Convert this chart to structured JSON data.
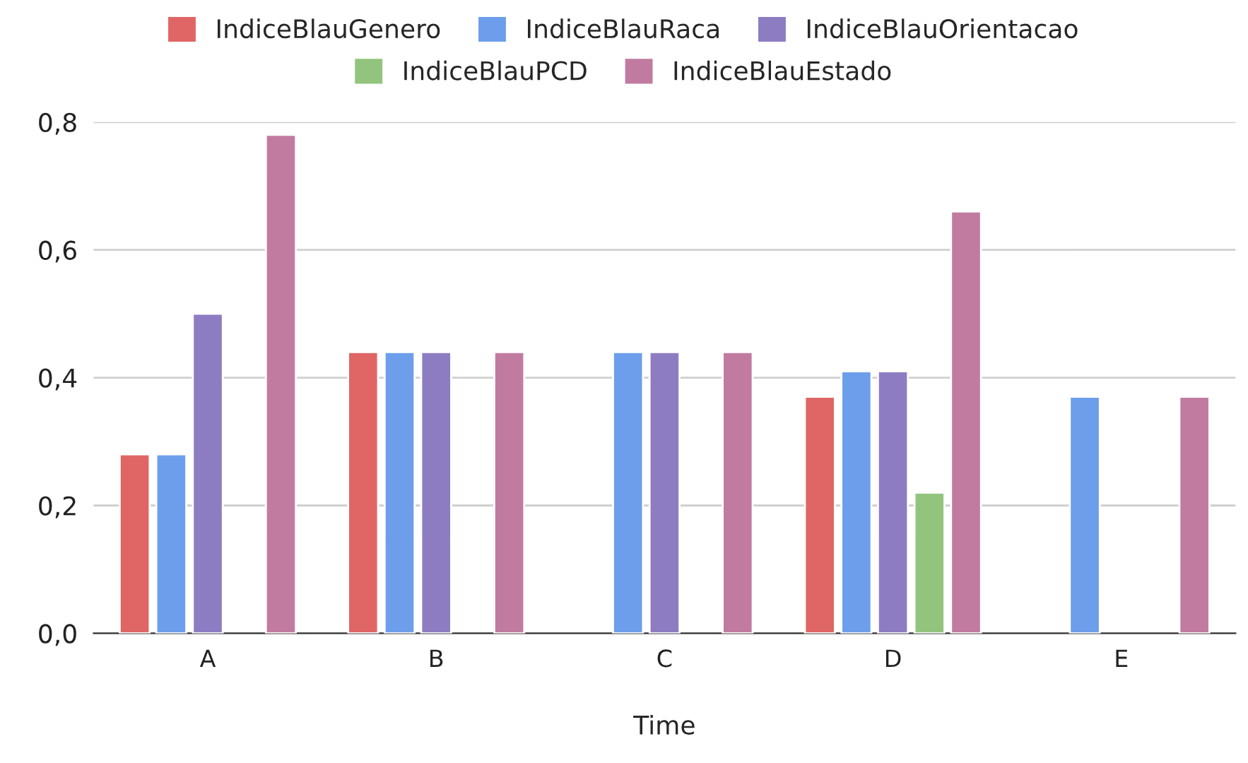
{
  "chart_data": {
    "type": "bar",
    "xlabel": "Time",
    "categories": [
      "A",
      "B",
      "C",
      "D",
      "E"
    ],
    "series": [
      {
        "name": "IndiceBlauGenero",
        "color": "#e06666",
        "values": [
          0.28,
          0.44,
          null,
          0.37,
          null
        ]
      },
      {
        "name": "IndiceBlauRaca",
        "color": "#6d9eeb",
        "values": [
          0.28,
          0.44,
          0.44,
          0.41,
          0.37
        ]
      },
      {
        "name": "IndiceBlauOrientacao",
        "color": "#8e7cc3",
        "values": [
          0.5,
          0.44,
          0.44,
          0.41,
          null
        ]
      },
      {
        "name": "IndiceBlauPCD",
        "color": "#93c47d",
        "values": [
          null,
          null,
          null,
          0.22,
          null
        ]
      },
      {
        "name": "IndiceBlauEstado",
        "color": "#c27ba0",
        "values": [
          0.78,
          0.44,
          0.44,
          0.66,
          0.37
        ]
      }
    ],
    "ylim": [
      0,
      0.8
    ],
    "yticks": [
      {
        "value": 0,
        "label": "0,0"
      },
      {
        "value": 0.2,
        "label": "0,2"
      },
      {
        "value": 0.4,
        "label": "0,4"
      },
      {
        "value": 0.6,
        "label": "0,6"
      },
      {
        "value": 0.8,
        "label": "0,8"
      }
    ],
    "grid": "y",
    "legend": "top"
  }
}
